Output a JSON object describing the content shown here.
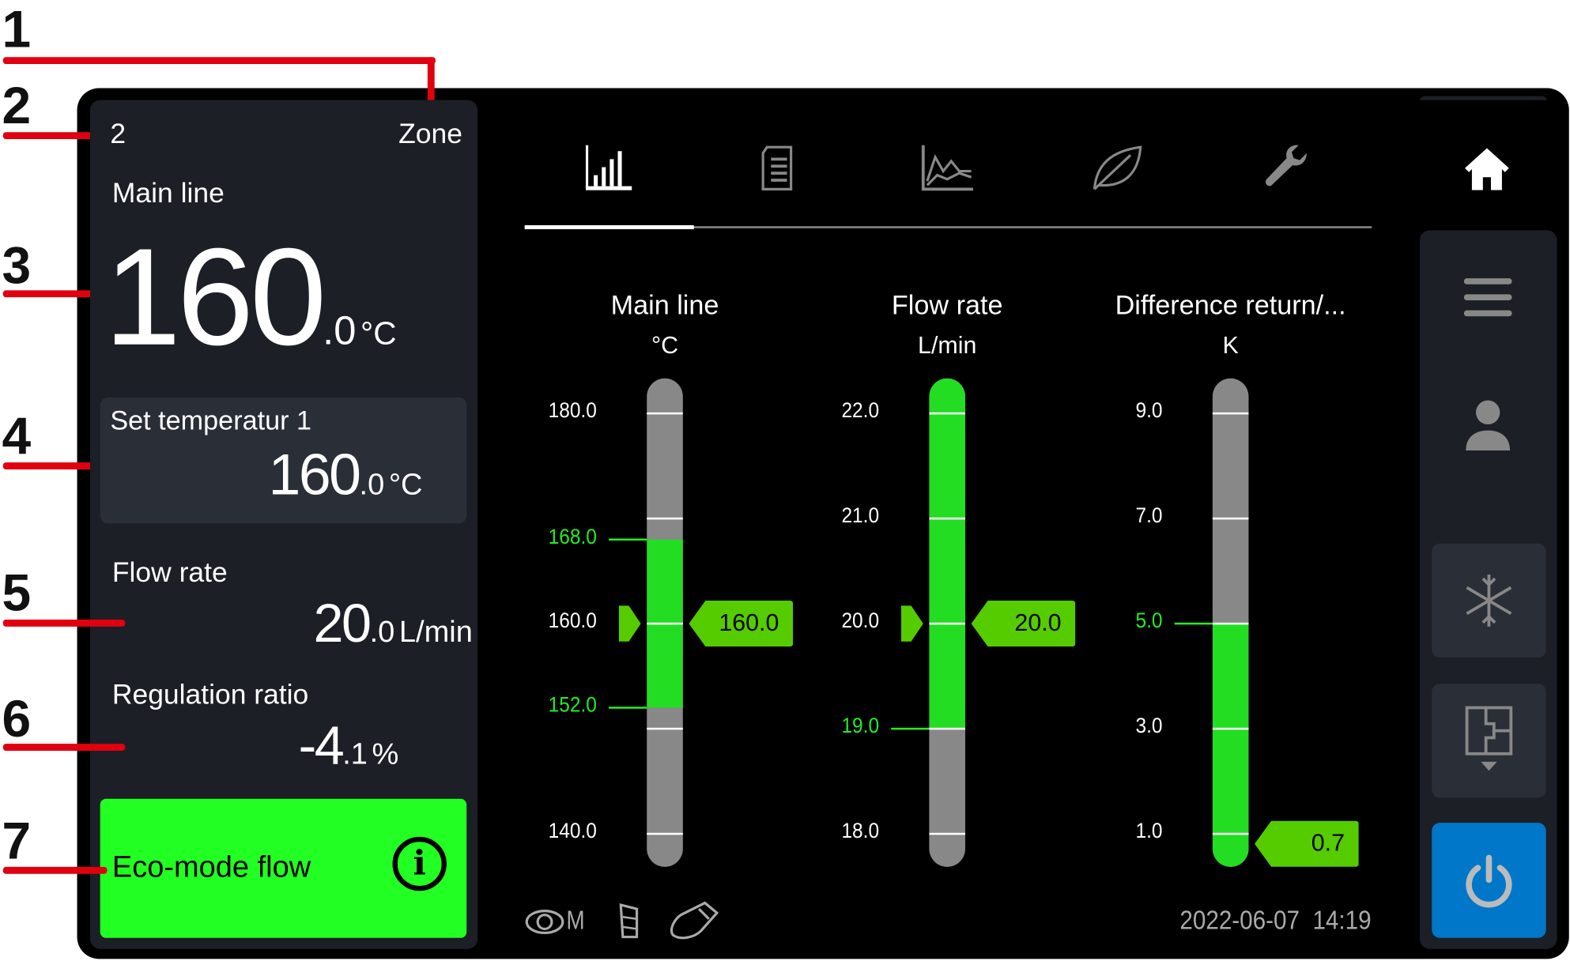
{
  "annotations": [
    "1",
    "2",
    "3",
    "4",
    "5",
    "6",
    "7"
  ],
  "zone": {
    "number": "2",
    "label": "Zone"
  },
  "main_line": {
    "label": "Main line",
    "int": "160",
    "dec": ".0",
    "unit": "°C"
  },
  "set_temperature": {
    "label": "Set temperatur 1",
    "int": "160",
    "dec": ".0",
    "unit": "°C"
  },
  "flow_rate": {
    "label": "Flow rate",
    "int": "20",
    "dec": ".0",
    "unit": "L/min"
  },
  "regulation_ratio": {
    "label": "Regulation ratio",
    "int": "-4",
    "dec": ".1",
    "unit": "%"
  },
  "eco_mode": {
    "label": "Eco-mode flow",
    "info_icon": "i",
    "color": "#22ff22"
  },
  "tabs": [
    {
      "icon": "bar-chart-icon",
      "active": true
    },
    {
      "icon": "document-icon",
      "active": false
    },
    {
      "icon": "line-chart-icon",
      "active": false
    },
    {
      "icon": "leaf-icon",
      "active": false
    },
    {
      "icon": "wrench-icon",
      "active": false
    }
  ],
  "sidebar": {
    "home": "home-icon",
    "menu": "menu-icon",
    "user": "user-icon",
    "cooling": "snowflake-icon",
    "diagram": "diagram-icon",
    "power": "power-icon",
    "power_color": "#0077c8"
  },
  "colors": {
    "green_fill": "#22dd22",
    "green_label": "#22ee22",
    "bar_gray": "#888888",
    "tag_green": "#55cc00"
  },
  "gauges": [
    {
      "title": "Main line",
      "unit": "°C",
      "max": 180,
      "min": 140,
      "tick_values": [
        180,
        170,
        160,
        150,
        140
      ],
      "labels": [
        {
          "text": "180.0",
          "value": 180,
          "hl": false
        },
        {
          "text": "168.0",
          "value": 168,
          "hl": true
        },
        {
          "text": "160.0",
          "value": 160,
          "hl": false
        },
        {
          "text": "152.0",
          "value": 152,
          "hl": true
        },
        {
          "text": "140.0",
          "value": 140,
          "hl": false
        }
      ],
      "fill_from": 152,
      "fill_to": 168,
      "setpoint": 160,
      "actual": 160,
      "actual_text": "160.0"
    },
    {
      "title": "Flow rate",
      "unit": "L/min",
      "max": 22,
      "min": 18,
      "tick_values": [
        22,
        21,
        20,
        19,
        18
      ],
      "labels": [
        {
          "text": "22.0",
          "value": 22,
          "hl": false
        },
        {
          "text": "21.0",
          "value": 21,
          "hl": false
        },
        {
          "text": "20.0",
          "value": 20,
          "hl": false
        },
        {
          "text": "19.0",
          "value": 19,
          "hl": true
        },
        {
          "text": "18.0",
          "value": 18,
          "hl": false
        }
      ],
      "fill_from": 19,
      "fill_to": 99,
      "setpoint": 20,
      "actual": 20,
      "actual_text": "20.0"
    },
    {
      "title": "Difference return/...",
      "unit": "K",
      "max": 9,
      "min": 1,
      "tick_values": [
        9,
        7,
        5,
        3,
        1
      ],
      "labels": [
        {
          "text": "9.0",
          "value": 9,
          "hl": false
        },
        {
          "text": "7.0",
          "value": 7,
          "hl": false
        },
        {
          "text": "5.0",
          "value": 5,
          "hl": true
        },
        {
          "text": "3.0",
          "value": 3,
          "hl": false
        },
        {
          "text": "1.0",
          "value": 1,
          "hl": false
        }
      ],
      "fill_from": -99,
      "fill_to": 5,
      "setpoint": null,
      "actual": 0.7,
      "actual_text": "0.7"
    }
  ],
  "status": {
    "icons": [
      "eye-m-icon",
      "battery-icon",
      "usb-icon"
    ],
    "eye_letter": "M",
    "datetime": "2022-06-07  14:19"
  }
}
